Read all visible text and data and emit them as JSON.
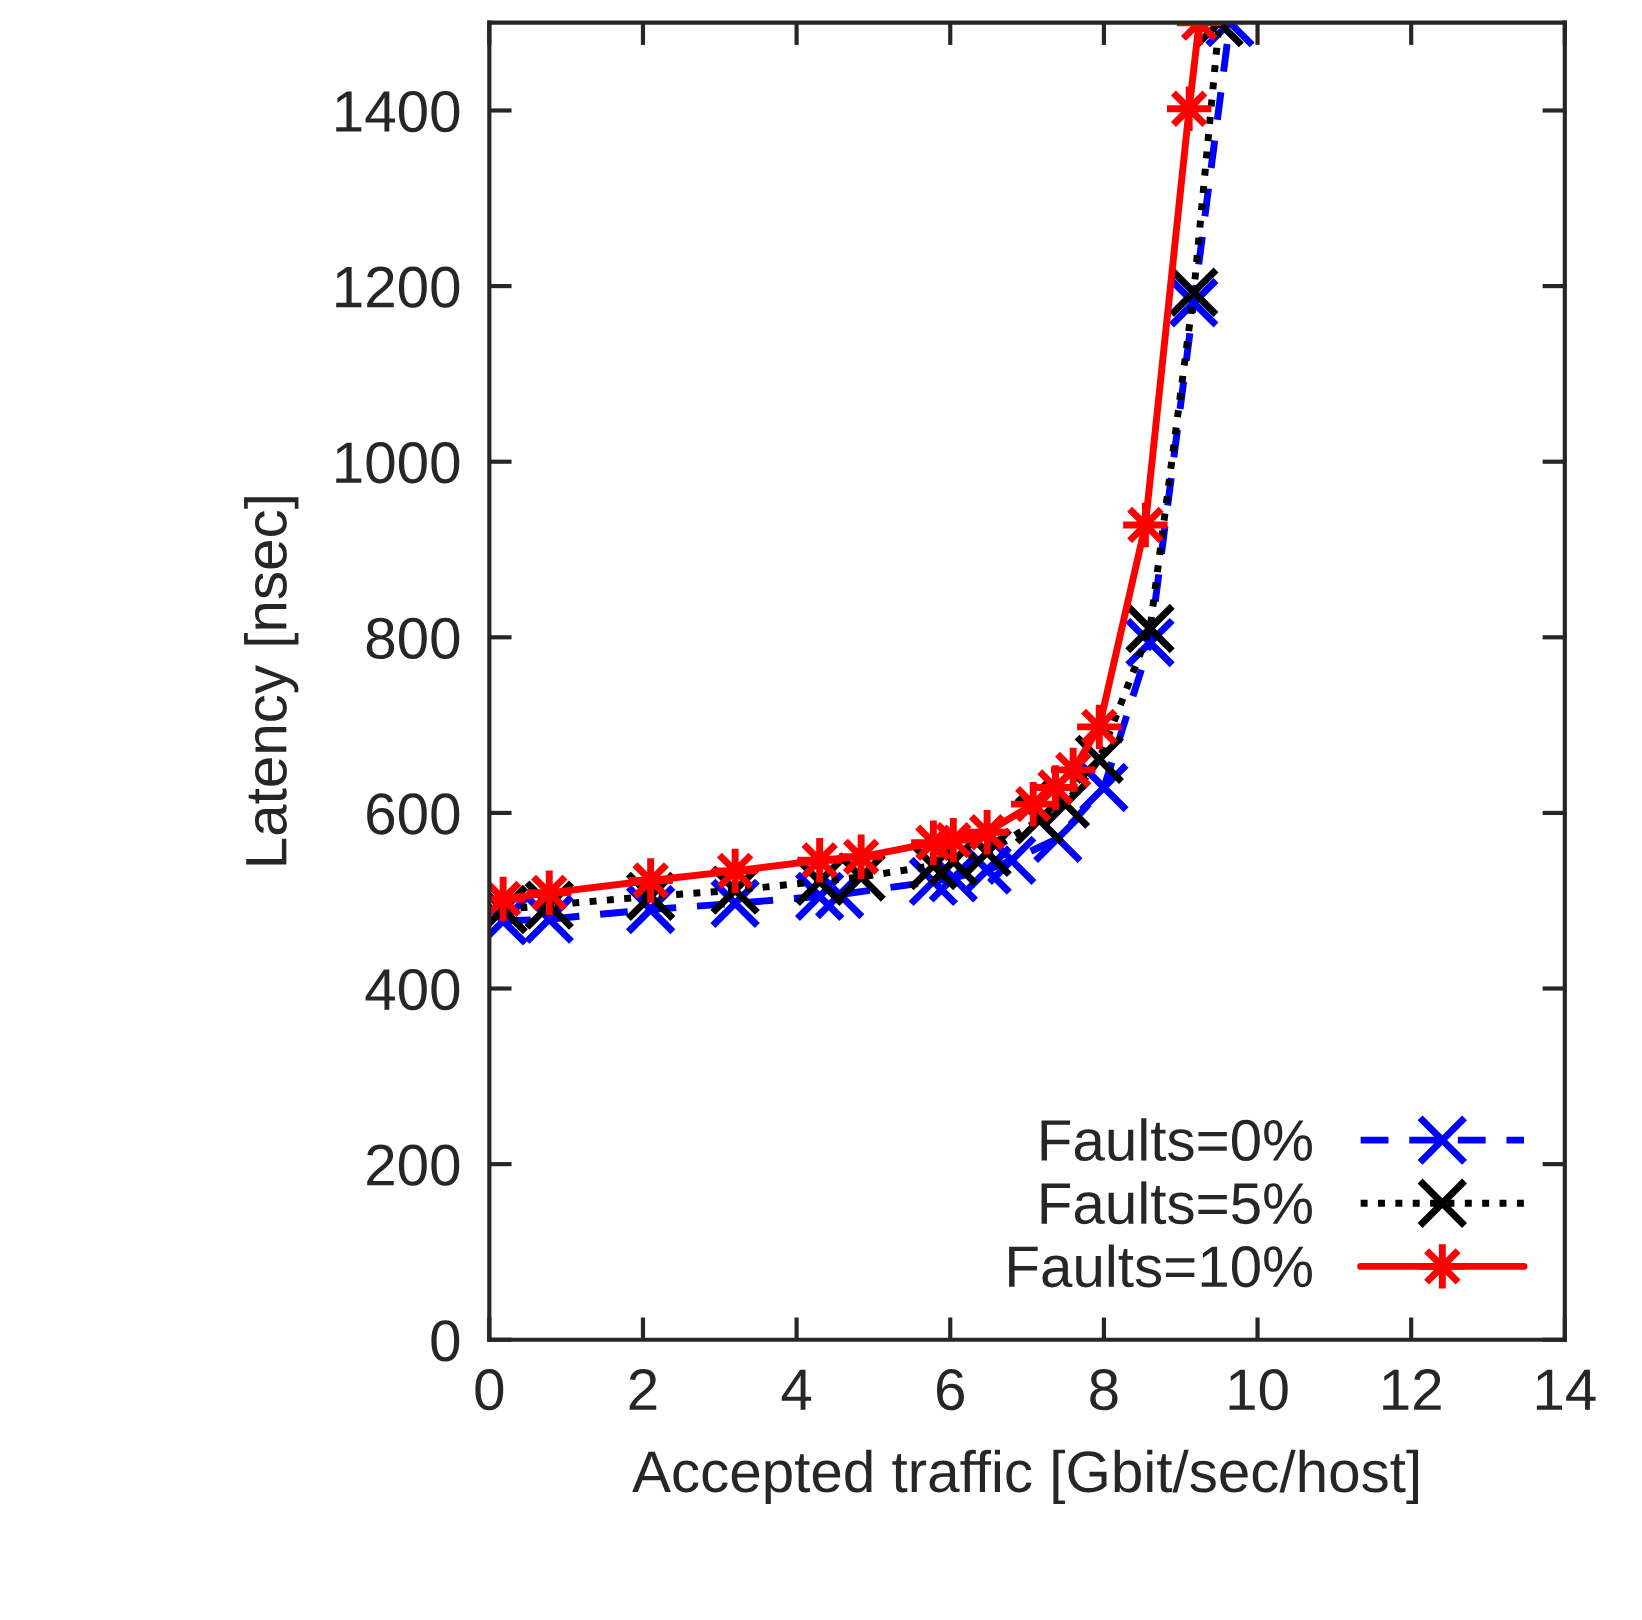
{
  "chart_data": {
    "type": "line",
    "xlabel": "Accepted traffic [Gbit/sec/host]",
    "ylabel": "Latency [nsec]",
    "xlim": [
      0,
      14
    ],
    "xticks": [
      0,
      2,
      4,
      6,
      8,
      10,
      12,
      14
    ],
    "ylim": [
      0,
      1500
    ],
    "yticks": [
      0,
      200,
      400,
      600,
      800,
      1000,
      1200,
      1400
    ],
    "grid": false,
    "legend": "bottom right",
    "series": [
      {
        "name": "Faults=0%",
        "color": "#0000ff",
        "marker": "cross",
        "line_style": "dashed",
        "x": [
          0.18,
          0.78,
          2.1,
          3.2,
          4.3,
          4.56,
          5.78,
          6.04,
          6.48,
          6.8,
          7.4,
          8.0,
          8.6,
          9.17,
          9.64
        ],
        "values": [
          477,
          479,
          490,
          497,
          505,
          507,
          522,
          526,
          535,
          546,
          571,
          629,
          794,
          1181,
          1500
        ]
      },
      {
        "name": "Faults=5%",
        "color": "#000000",
        "marker": "cross",
        "line_style": "dotted",
        "x": [
          0.18,
          0.78,
          2.1,
          3.2,
          4.3,
          4.84,
          5.78,
          6.04,
          6.48,
          7.16,
          7.5,
          7.94,
          8.6,
          9.17,
          9.5
        ],
        "values": [
          490,
          495,
          505,
          512,
          522,
          527,
          540,
          545,
          555,
          592,
          610,
          661,
          810,
          1193,
          1500
        ]
      },
      {
        "name": "Faults=10%",
        "color": "#ff0000",
        "marker": "star",
        "line_style": "solid",
        "x": [
          0.18,
          0.78,
          2.1,
          3.2,
          4.3,
          4.84,
          5.78,
          6.04,
          6.48,
          7.08,
          7.37,
          7.6,
          7.94,
          8.54,
          9.11,
          9.24
        ],
        "values": [
          502,
          509,
          523,
          534,
          546,
          550,
          566,
          569,
          578,
          610,
          629,
          649,
          698,
          928,
          1402,
          1500
        ]
      }
    ]
  }
}
